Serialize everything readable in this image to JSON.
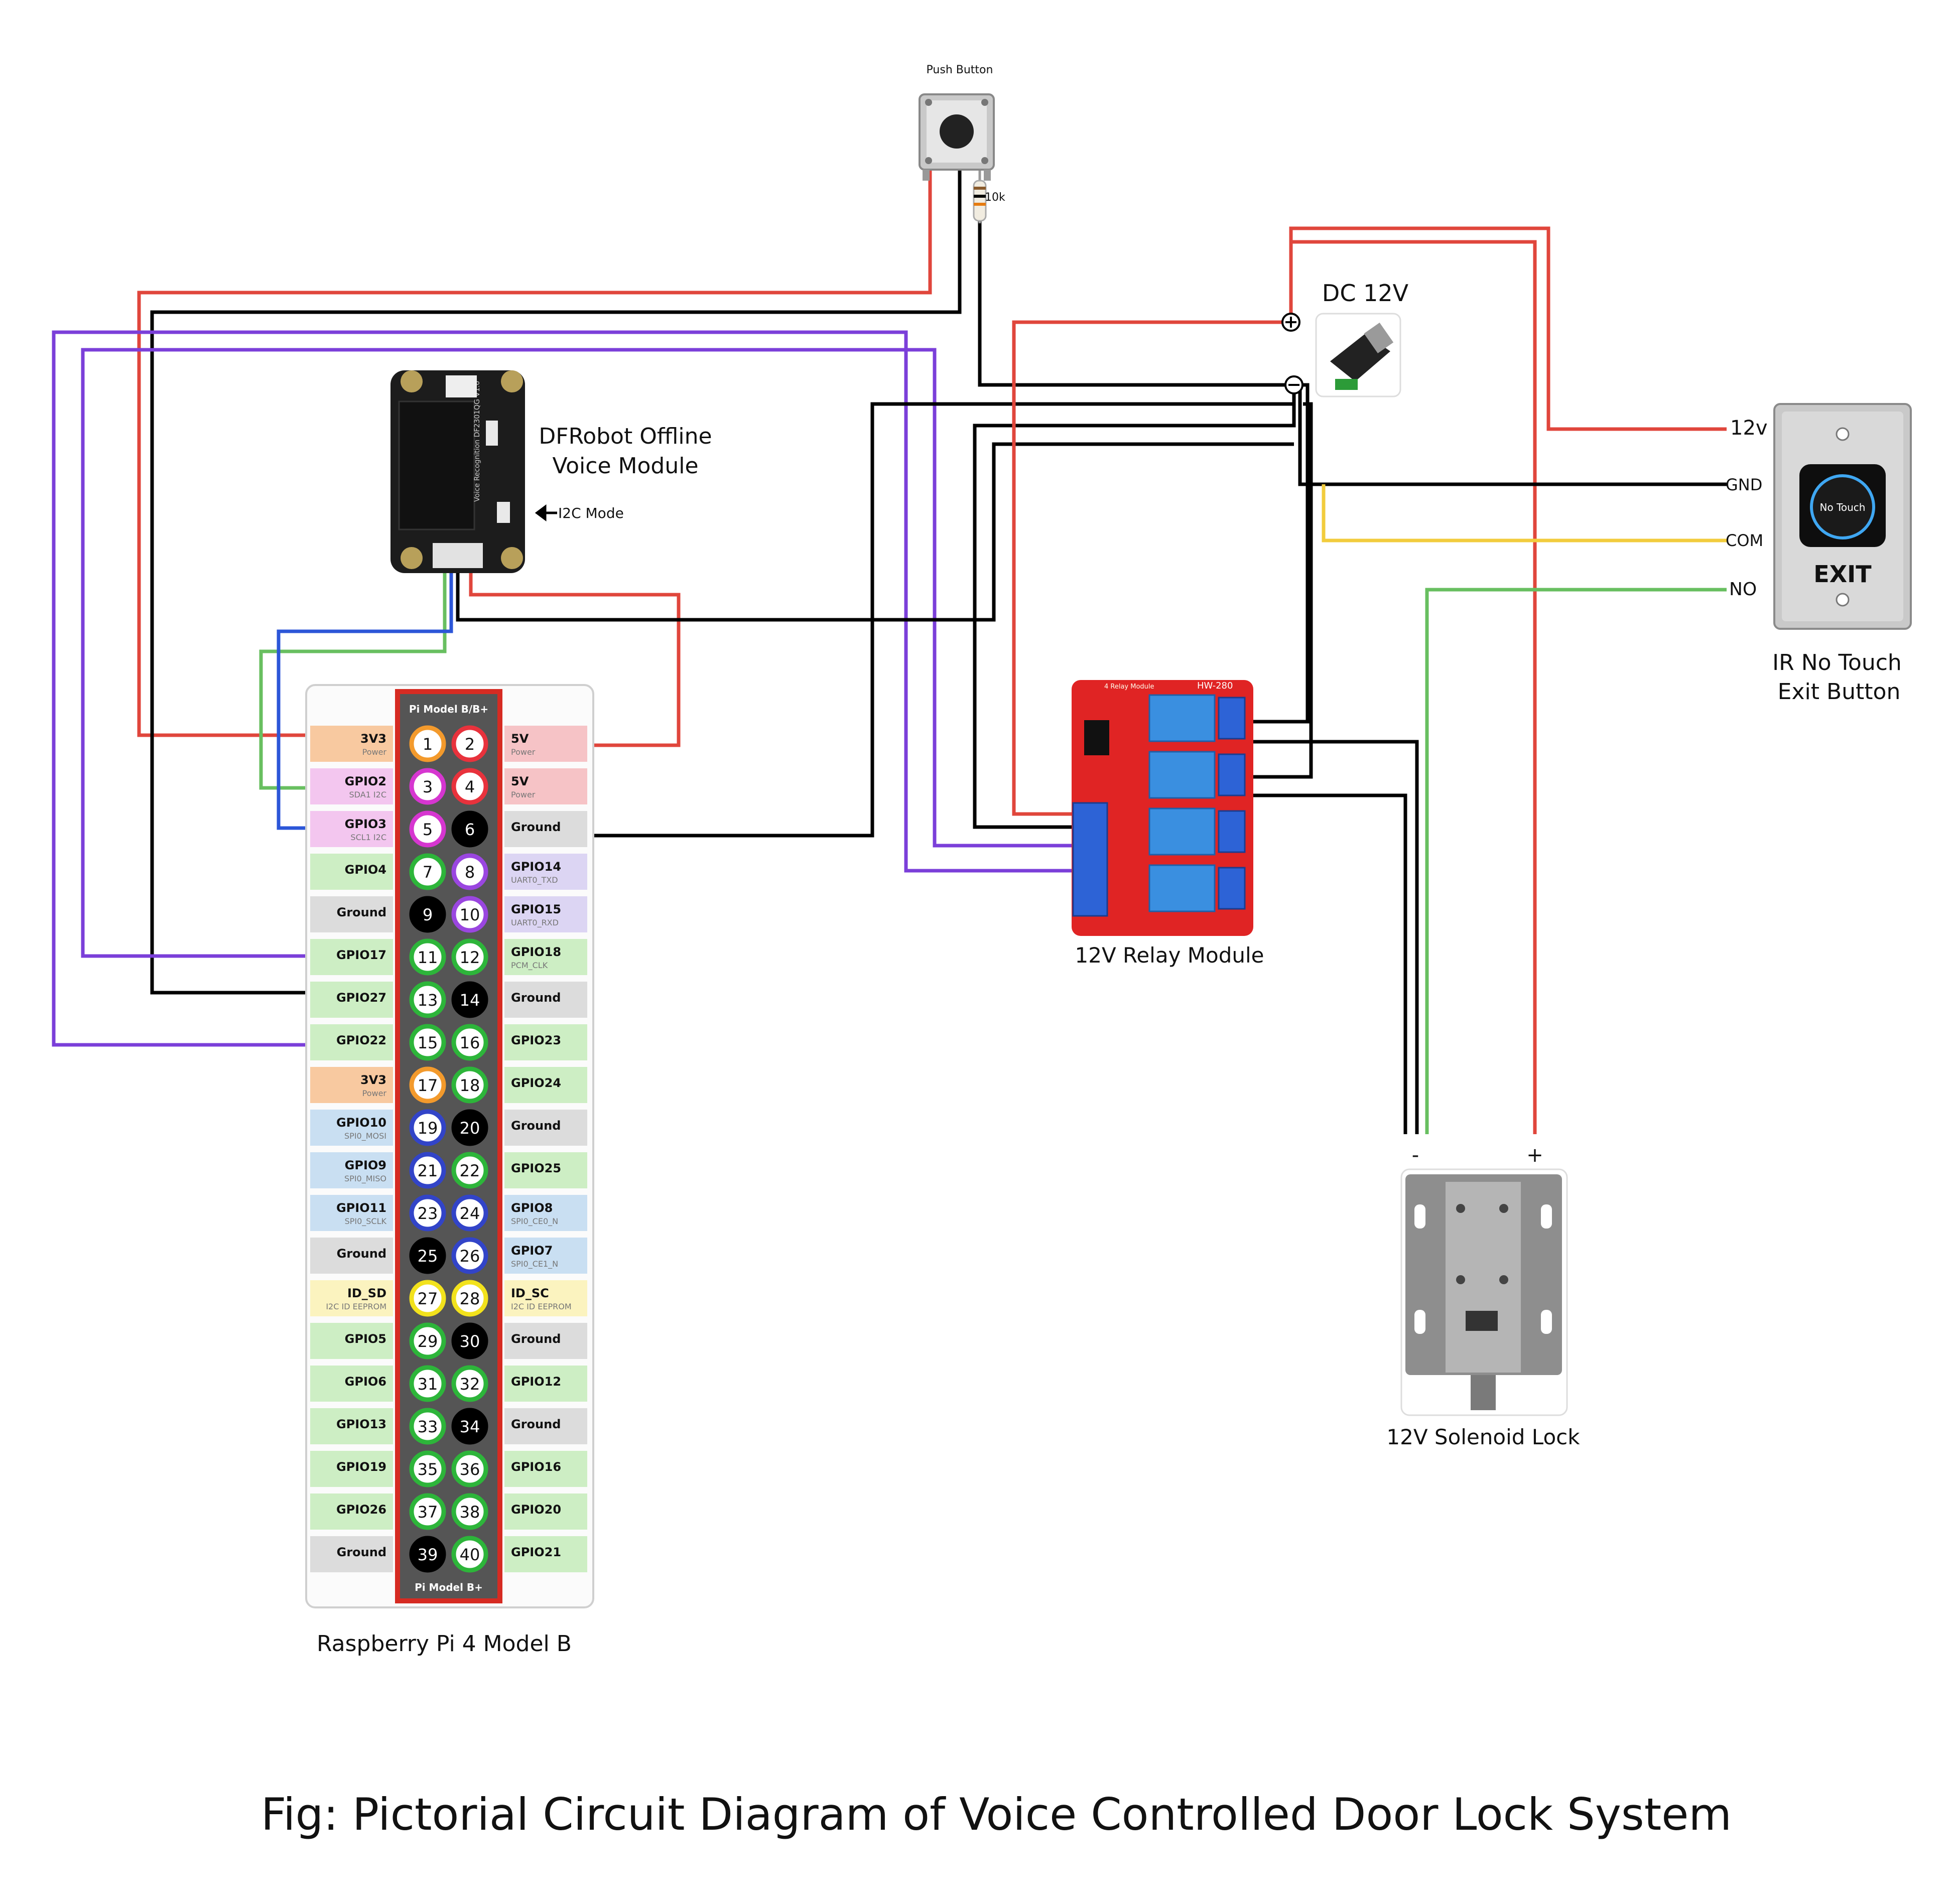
{
  "caption": "Fig: Pictorial Circuit Diagram of Voice Controlled Door Lock System",
  "components": {
    "push_button": {
      "label": "Push Button",
      "resistor": "10k"
    },
    "voice_module": {
      "label_line1": "DFRobot Offline",
      "label_line2": "Voice Module",
      "mode_label": "I2C Mode"
    },
    "dc_supply": {
      "label": "DC 12V",
      "plus": "⊕",
      "minus": "⊖"
    },
    "exit_button": {
      "label_line1": "IR No Touch",
      "label_line2": "Exit Button",
      "pins": [
        "12v",
        "GND",
        "COM",
        "NO"
      ],
      "face_text": "No Touch",
      "exit_text": "EXIT"
    },
    "relay": {
      "label": "12V Relay Module",
      "model": "HW-280"
    },
    "lock": {
      "label": "12V Solenoid Lock",
      "minus": "-",
      "plus": "+"
    },
    "pi": {
      "label": "Raspberry Pi 4 Model B",
      "header_top": "Pi Model B/B+",
      "header_bottom": "Pi Model B+"
    }
  },
  "pi_pins": [
    {
      "pin": "1",
      "left": "3V3",
      "left_sub": "Power",
      "right": "5V",
      "right_sub": "Power"
    },
    {
      "pin": "3",
      "left": "GPIO2",
      "left_sub": "SDA1 I2C",
      "right": "5V",
      "right_sub": "Power"
    },
    {
      "pin": "5",
      "left": "GPIO3",
      "left_sub": "SCL1 I2C",
      "right": "Ground",
      "right_sub": ""
    },
    {
      "pin": "7",
      "left": "GPIO4",
      "left_sub": "",
      "right": "GPIO14",
      "right_sub": "UART0_TXD"
    },
    {
      "pin": "9",
      "left": "Ground",
      "left_sub": "",
      "right": "GPIO15",
      "right_sub": "UART0_RXD"
    },
    {
      "pin": "11",
      "left": "GPIO17",
      "left_sub": "",
      "right": "GPIO18",
      "right_sub": "PCM_CLK"
    },
    {
      "pin": "13",
      "left": "GPIO27",
      "left_sub": "",
      "right": "Ground",
      "right_sub": ""
    },
    {
      "pin": "15",
      "left": "GPIO22",
      "left_sub": "",
      "right": "GPIO23",
      "right_sub": ""
    },
    {
      "pin": "17",
      "left": "3V3",
      "left_sub": "Power",
      "right": "GPIO24",
      "right_sub": ""
    },
    {
      "pin": "19",
      "left": "GPIO10",
      "left_sub": "SPI0_MOSI",
      "right": "Ground",
      "right_sub": ""
    },
    {
      "pin": "21",
      "left": "GPIO9",
      "left_sub": "SPI0_MISO",
      "right": "GPIO25",
      "right_sub": ""
    },
    {
      "pin": "23",
      "left": "GPIO11",
      "left_sub": "SPI0_SCLK",
      "right": "GPIO8",
      "right_sub": "SPI0_CE0_N"
    },
    {
      "pin": "25",
      "left": "Ground",
      "left_sub": "",
      "right": "GPIO7",
      "right_sub": "SPI0_CE1_N"
    },
    {
      "pin": "27",
      "left": "ID_SD",
      "left_sub": "I2C ID EEPROM",
      "right": "ID_SC",
      "right_sub": "I2C ID EEPROM"
    },
    {
      "pin": "29",
      "left": "GPIO5",
      "left_sub": "",
      "right": "Ground",
      "right_sub": ""
    },
    {
      "pin": "31",
      "left": "GPIO6",
      "left_sub": "",
      "right": "GPIO12",
      "right_sub": ""
    },
    {
      "pin": "33",
      "left": "GPIO13",
      "left_sub": "",
      "right": "Ground",
      "right_sub": ""
    },
    {
      "pin": "35",
      "left": "GPIO19",
      "left_sub": "",
      "right": "GPIO16",
      "right_sub": ""
    },
    {
      "pin": "37",
      "left": "GPIO26",
      "left_sub": "",
      "right": "GPIO20",
      "right_sub": ""
    },
    {
      "pin": "39",
      "left": "Ground",
      "left_sub": "",
      "right": "GPIO21",
      "right_sub": ""
    }
  ],
  "pin_types": {
    "power3v3": {
      "fill": "#f8c9a0",
      "ring": "#f39a2c"
    },
    "power5v": {
      "fill": "#f6c3c6",
      "ring": "#e8323c"
    },
    "i2c": {
      "fill": "#f3c6ef",
      "ring": "#d636d0"
    },
    "gpio": {
      "fill": "#cdeec4",
      "ring": "#2db53a"
    },
    "ground": {
      "fill": "#dcdcdc",
      "ring": "#000000"
    },
    "uart": {
      "fill": "#dcd5f3",
      "ring": "#9a46e0"
    },
    "spi": {
      "fill": "#c9dff2",
      "ring": "#3244c8"
    },
    "eeprom": {
      "fill": "#fbf3bf",
      "ring": "#f2e21c"
    }
  },
  "wire_colors": {
    "red": "#e0463c",
    "black": "#000000",
    "purple": "#7b3fd9",
    "green": "#68bf60",
    "blue": "#2c56d8",
    "yellow": "#f2cc3d"
  }
}
